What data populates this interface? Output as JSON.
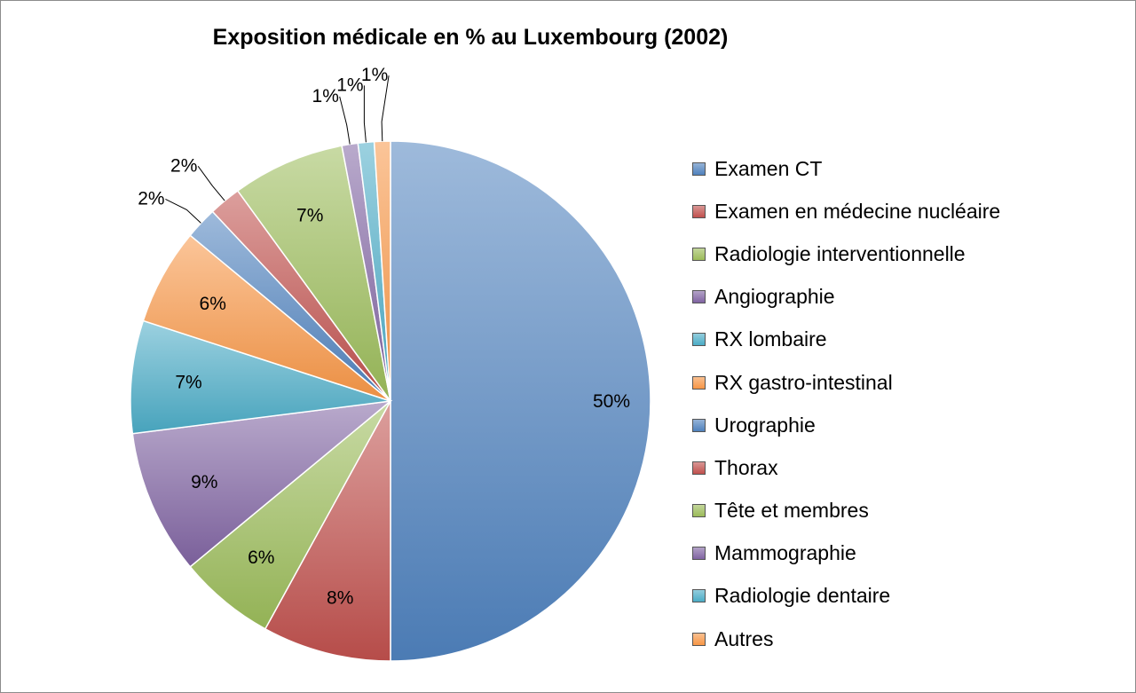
{
  "chart_data": {
    "type": "pie",
    "title": "Exposition médicale en % au Luxembourg  (2002)",
    "categories": [
      "Examen CT",
      "Examen en médecine nucléaire",
      "Radiologie interventionnelle",
      "Angiographie",
      "RX lombaire",
      "RX gastro-intestinal",
      "Urographie",
      "Thorax",
      "Tête et membres",
      "Mammographie",
      "Radiologie dentaire",
      "Autres"
    ],
    "values": [
      50,
      8,
      6,
      9,
      7,
      6,
      2,
      2,
      7,
      1,
      1,
      1
    ],
    "value_labels": [
      "50%",
      "8%",
      "6%",
      "9%",
      "7%",
      "6%",
      "2%",
      "2%",
      "7%",
      "1%",
      "1%",
      "1%"
    ],
    "colors": [
      "#4f81bd",
      "#c0504d",
      "#9bbb59",
      "#8064a2",
      "#4bacc6",
      "#f79646",
      "#4f81bd",
      "#c0504d",
      "#9bbb59",
      "#8064a2",
      "#4bacc6",
      "#f79646"
    ],
    "legend_position": "right",
    "start_angle": "12 o'clock",
    "direction": "clockwise"
  }
}
